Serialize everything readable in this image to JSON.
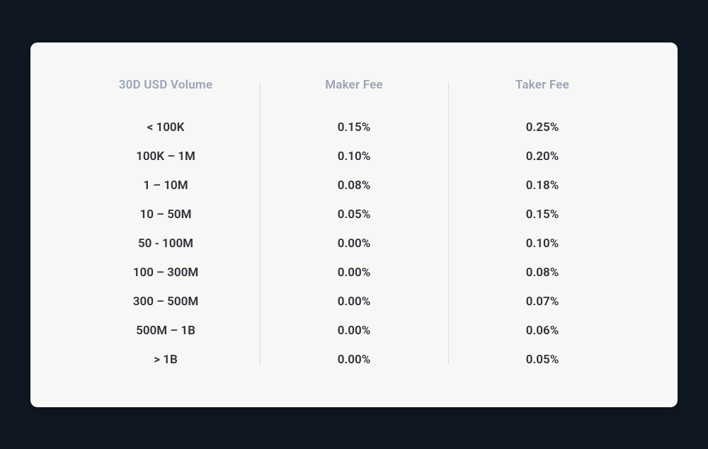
{
  "fee_table": {
    "type": "table",
    "background_color": "#0f1823",
    "card_color": "#f7f7f6",
    "header_color": "#9aa3b5",
    "cell_color": "#2e3138",
    "divider_color": "#dcdcdc",
    "font_weight": 600,
    "header_fontsize": 17,
    "cell_fontsize": 17,
    "columns": [
      {
        "header": "30D USD Volume"
      },
      {
        "header": "Maker Fee"
      },
      {
        "header": "Taker Fee"
      }
    ],
    "rows": [
      {
        "volume": "< 100K",
        "maker": "0.15%",
        "taker": "0.25%"
      },
      {
        "volume": "100K – 1M",
        "maker": "0.10%",
        "taker": "0.20%"
      },
      {
        "volume": "1 – 10M",
        "maker": "0.08%",
        "taker": "0.18%"
      },
      {
        "volume": "10 – 50M",
        "maker": "0.05%",
        "taker": "0.15%"
      },
      {
        "volume": "50 - 100M",
        "maker": "0.00%",
        "taker": "0.10%"
      },
      {
        "volume": "100 – 300M",
        "maker": "0.00%",
        "taker": "0.08%"
      },
      {
        "volume": "300 – 500M",
        "maker": "0.00%",
        "taker": "0.07%"
      },
      {
        "volume": "500M – 1B",
        "maker": "0.00%",
        "taker": "0.06%"
      },
      {
        "volume": "> 1B",
        "maker": "0.00%",
        "taker": "0.05%"
      }
    ]
  }
}
